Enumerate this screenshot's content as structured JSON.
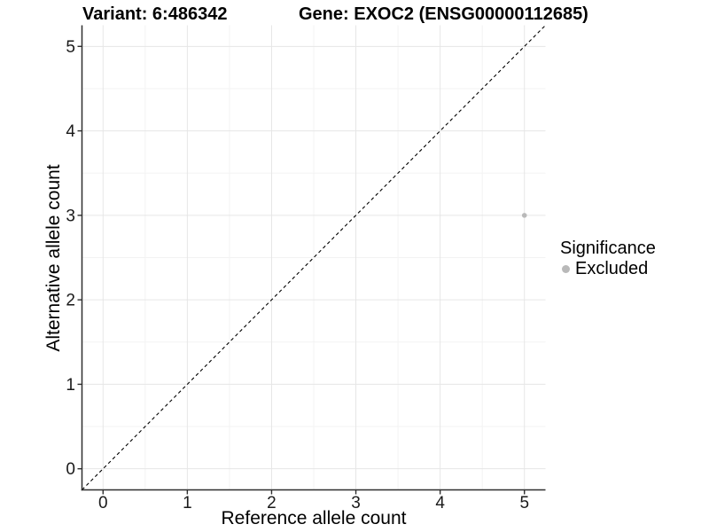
{
  "chart_data": {
    "type": "scatter",
    "titles": {
      "variant": "Variant: 6:486342",
      "gene": "Gene: EXOC2 (ENSG00000112685)"
    },
    "xlabel": "Reference allele count",
    "ylabel": "Alternative allele count",
    "xlim": [
      -0.25,
      5.25
    ],
    "ylim": [
      -0.25,
      5.25
    ],
    "x_ticks": [
      0,
      1,
      2,
      3,
      4,
      5
    ],
    "y_ticks": [
      0,
      1,
      2,
      3,
      4,
      5
    ],
    "x_minor": [
      0.5,
      1.5,
      2.5,
      3.5,
      4.5
    ],
    "y_minor": [
      0.5,
      1.5,
      2.5,
      3.5,
      4.5
    ],
    "grid": "major and minor gridlines, white panel",
    "identity_line": {
      "slope": 1,
      "intercept": 0,
      "style": "dashed",
      "color": "#000000"
    },
    "series": [
      {
        "name": "Excluded",
        "color": "#b9b9b9",
        "points": [
          {
            "x": 5,
            "y": 3
          }
        ]
      }
    ],
    "legend": {
      "title": "Significance",
      "position": "right",
      "entries": [
        {
          "label": "Excluded",
          "color": "#b9b9b9"
        }
      ]
    },
    "colors": {
      "background": "#ffffff",
      "grid_major": "#e6e6e6",
      "grid_minor": "#f3f3f3",
      "axis_line": "#2f2f2f",
      "tick_text": "#1a1a1a",
      "title_text": "#000000"
    }
  }
}
